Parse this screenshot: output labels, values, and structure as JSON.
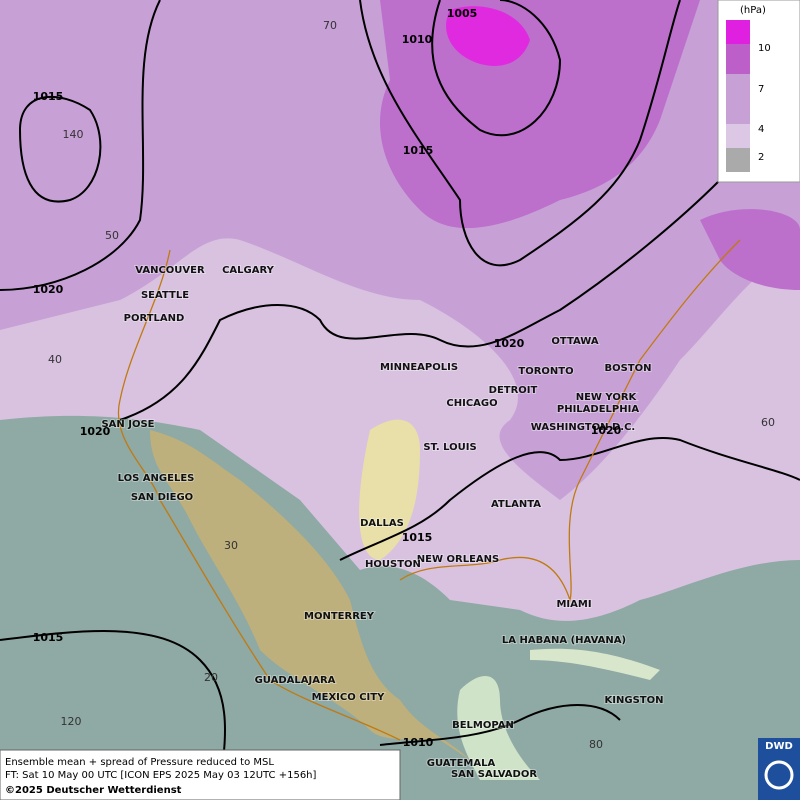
{
  "cities": [
    "VANCOUVER",
    "CALGARY",
    "SEATTLE",
    "PORTLAND",
    "MINNEAPOLIS",
    "OTTAWA",
    "TORONTO",
    "BOSTON",
    "DETROIT",
    "NEW YORK",
    "PHILADELPHIA",
    "CHICAGO",
    "WASHINGTON D.C.",
    "ST. LOUIS",
    "SAN JOSE",
    "LOS ANGELES",
    "SAN DIEGO",
    "ATLANTA",
    "DALLAS",
    "NEW ORLEANS",
    "HOUSTON",
    "MIAMI",
    "MONTERREY",
    "LA HABANA (HAVANA)",
    "GUADALAJARA",
    "MEXICO CITY",
    "KINGSTON",
    "BELMOPAN",
    "GUATEMALA",
    "SAN SALVADOR"
  ],
  "isobar_labels": [
    "1005",
    "1010",
    "1015",
    "1015",
    "1020",
    "1020",
    "1020",
    "1020",
    "1015",
    "1015",
    "1010"
  ],
  "graticule_labels": [
    "70",
    "140",
    "50",
    "40",
    "60",
    "30",
    "20",
    "120",
    "80"
  ],
  "legend": {
    "unit": "(hPa)",
    "levels": [
      10,
      7,
      4,
      2
    ]
  },
  "caption": {
    "line1": "Ensemble mean + spread of Pressure reduced to MSL",
    "line2": "FT: Sat 10 May 00 UTC [ICON EPS 2025 May 03 12UTC +156h]",
    "line3": "©2025 Deutscher Wetterdienst"
  },
  "logo": "DWD"
}
